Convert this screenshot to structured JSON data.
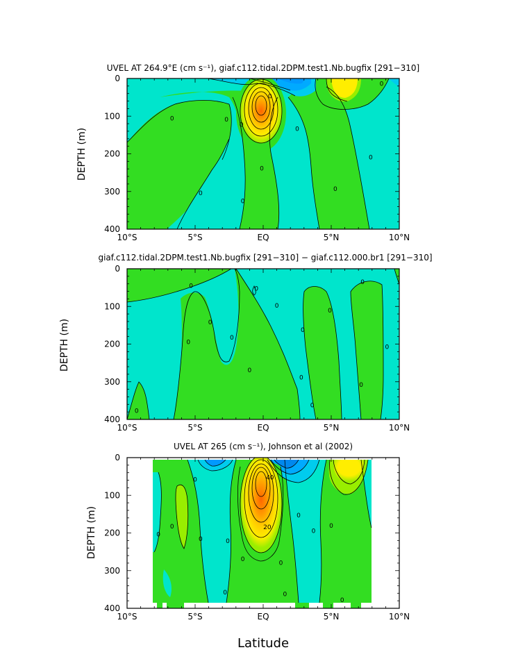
{
  "chart_data": [
    {
      "type": "contour",
      "title": "UVEL AT 264.9°E (cm s⁻¹), giaf.c112.tidal.2DPM.test1.Nb.bugfix [291−310]",
      "ylabel": "DEPTH (m)",
      "xlabel": "",
      "x_ticks": [
        "10°S",
        "5°S",
        "EQ",
        "5°N",
        "10°N"
      ],
      "y_ticks": [
        "0",
        "100",
        "200",
        "300",
        "400"
      ],
      "xlim": [
        -10,
        10
      ],
      "ylim": [
        400,
        0
      ],
      "contour_labels": [
        {
          "text": "0",
          "lat": -6.7,
          "depth": 105
        },
        {
          "text": "0",
          "lat": -4.6,
          "depth": 303
        },
        {
          "text": "0",
          "lat": -2.7,
          "depth": 108
        },
        {
          "text": "0",
          "lat": -1.6,
          "depth": 122
        },
        {
          "text": "0",
          "lat": -1.5,
          "depth": 324
        },
        {
          "text": "0",
          "lat": -0.1,
          "depth": 238
        },
        {
          "text": "0",
          "lat": 0.5,
          "depth": 46
        },
        {
          "text": "0",
          "lat": 2.5,
          "depth": 133
        },
        {
          "text": "0",
          "lat": 5.3,
          "depth": 292
        },
        {
          "text": "0",
          "lat": 7.9,
          "depth": 208
        },
        {
          "text": "0",
          "lat": 8.7,
          "depth": 13
        }
      ]
    },
    {
      "type": "contour",
      "title": "giaf.c112.tidal.2DPM.test1.Nb.bugfix [291−310] − giaf.c112.000.br1 [291−310]",
      "ylabel": "DEPTH (m)",
      "xlabel": "",
      "x_ticks": [
        "10°S",
        "5°S",
        "EQ",
        "5°N",
        "10°N"
      ],
      "y_ticks": [
        "0",
        "100",
        "200",
        "300",
        "400"
      ],
      "xlim": [
        -10,
        10
      ],
      "ylim": [
        400,
        0
      ],
      "contour_labels": [
        {
          "text": "0",
          "lat": -9.3,
          "depth": 376
        },
        {
          "text": "0",
          "lat": -5.5,
          "depth": 194
        },
        {
          "text": "0",
          "lat": -5.3,
          "depth": 44
        },
        {
          "text": "0",
          "lat": -3.9,
          "depth": 141
        },
        {
          "text": "0",
          "lat": -2.3,
          "depth": 182
        },
        {
          "text": "0",
          "lat": -1.0,
          "depth": 268
        },
        {
          "text": "0",
          "lat": -0.5,
          "depth": 52
        },
        {
          "text": "0",
          "lat": 1.0,
          "depth": 97
        },
        {
          "text": "0",
          "lat": 2.9,
          "depth": 161
        },
        {
          "text": "0",
          "lat": 2.8,
          "depth": 288
        },
        {
          "text": "0",
          "lat": 3.6,
          "depth": 361
        },
        {
          "text": "0",
          "lat": 4.9,
          "depth": 110
        },
        {
          "text": "0",
          "lat": 7.2,
          "depth": 307
        },
        {
          "text": "0",
          "lat": 7.3,
          "depth": 34
        },
        {
          "text": "0",
          "lat": 9.1,
          "depth": 206
        }
      ]
    },
    {
      "type": "contour",
      "title": "UVEL AT 265 (cm s⁻¹), Johnson et al (2002)",
      "ylabel": "DEPTH (m)",
      "xlabel": "Latitude",
      "x_ticks": [
        "10°S",
        "5°S",
        "EQ",
        "5°N",
        "10°N"
      ],
      "y_ticks": [
        "0",
        "100",
        "200",
        "300",
        "400"
      ],
      "xlim": [
        -10,
        10
      ],
      "ylim": [
        400,
        0
      ],
      "contour_labels": [
        {
          "text": "0",
          "lat": -7.7,
          "depth": 203
        },
        {
          "text": "0",
          "lat": -6.7,
          "depth": 182
        },
        {
          "text": "0",
          "lat": -5.0,
          "depth": 57
        },
        {
          "text": "0",
          "lat": -4.6,
          "depth": 215
        },
        {
          "text": "0",
          "lat": -2.6,
          "depth": 220
        },
        {
          "text": "0",
          "lat": -2.8,
          "depth": 357
        },
        {
          "text": "0",
          "lat": -1.5,
          "depth": 268
        },
        {
          "text": "0",
          "lat": 1.3,
          "depth": 278
        },
        {
          "text": "0",
          "lat": 1.6,
          "depth": 361
        },
        {
          "text": "0",
          "lat": 2.6,
          "depth": 152
        },
        {
          "text": "0",
          "lat": 3.7,
          "depth": 194
        },
        {
          "text": "0",
          "lat": 5.0,
          "depth": 180
        },
        {
          "text": "0",
          "lat": 5.8,
          "depth": 377
        },
        {
          "text": "20",
          "lat": 0.3,
          "depth": 183
        },
        {
          "text": "40",
          "lat": 0.5,
          "depth": 52
        }
      ]
    }
  ],
  "colors": {
    "cyan": "#00e5cc",
    "green": "#33dd22",
    "yellow_green": "#99ee00",
    "yellow": "#ffee00",
    "orange_yellow": "#ffcc00",
    "orange": "#ff9900",
    "dark_orange": "#ff6600",
    "light_blue": "#00ccee",
    "blue": "#0099ff"
  }
}
